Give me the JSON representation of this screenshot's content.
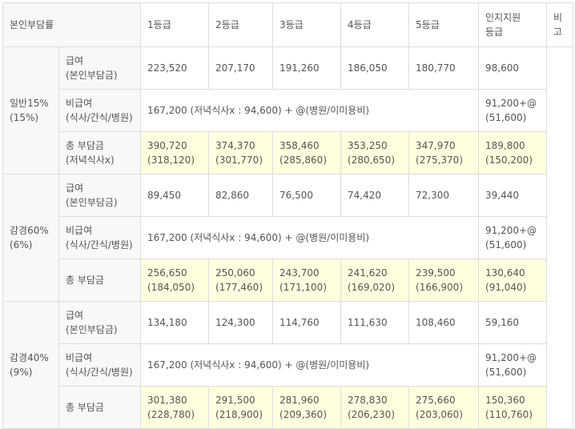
{
  "header": [
    [
      "본인부담률"
    ],
    [
      "1등급"
    ],
    [
      "2등급"
    ],
    [
      "3등급"
    ],
    [
      "4등급"
    ],
    [
      "5등급"
    ],
    [
      "인지지원",
      "등급"
    ],
    [
      "비",
      "고"
    ]
  ],
  "groups": [
    {
      "label": [
        "일반15%",
        "(15%)"
      ],
      "rows": [
        {
          "label": [
            "급여",
            "(본인부담금)"
          ],
          "values": [
            [
              "223,520"
            ],
            [
              "207,170"
            ],
            [
              "191,260"
            ],
            [
              "186,050"
            ],
            [
              "180,770"
            ],
            [
              "98,600"
            ]
          ]
        },
        {
          "label": [
            "비급여",
            "(식사/간식/병원)"
          ],
          "span": [
            "167,200 (저녁식사x : 94,600) + @(병원/이미용비)"
          ],
          "last": [
            "91,200+@",
            "(51,600)"
          ]
        },
        {
          "label": [
            "총 부담금",
            "(저녁식사x)"
          ],
          "values": [
            [
              "390,720",
              "(318,120)"
            ],
            [
              "374,370",
              "(301,770)"
            ],
            [
              "358,460",
              "(285,860)"
            ],
            [
              "353,250",
              "(280,650)"
            ],
            [
              "347,970",
              "(275,370)"
            ],
            [
              "189,800",
              "(150,200)"
            ]
          ]
        }
      ]
    },
    {
      "label": [
        "감경60%",
        "(6%)"
      ],
      "rows": [
        {
          "label": [
            "급여",
            "(본인부담금)"
          ],
          "values": [
            [
              "89,450"
            ],
            [
              "82,860"
            ],
            [
              "76,500"
            ],
            [
              "74,420"
            ],
            [
              "72,300"
            ],
            [
              "39,440"
            ]
          ]
        },
        {
          "label": [
            "비급여",
            "(식사/간식/병원)"
          ],
          "span": [
            "167,200 (저녁식사x : 94,600) + @(병원/이미용비)"
          ],
          "last": [
            "91,200+@",
            "(51,600)"
          ]
        },
        {
          "label": [
            "총 부담금"
          ],
          "values": [
            [
              "256,650",
              "(184,050)"
            ],
            [
              "250,060",
              "(177,460)"
            ],
            [
              "243,700",
              "(171,100)"
            ],
            [
              "241,620",
              "(169,020)"
            ],
            [
              "239,500",
              "(166,900)"
            ],
            [
              "130,640",
              "(91,040)"
            ]
          ]
        }
      ]
    },
    {
      "label": [
        "감경40%",
        "(9%)"
      ],
      "rows": [
        {
          "label": [
            "급여",
            "(본인부담금)"
          ],
          "values": [
            [
              "134,180"
            ],
            [
              "124,300"
            ],
            [
              "114,760"
            ],
            [
              "111,630"
            ],
            [
              "108,460"
            ],
            [
              "59,160"
            ]
          ]
        },
        {
          "label": [
            "비급여",
            "(식사/간식/병원)"
          ],
          "span": [
            "167,200 (저녁식사x : 94,600) + @(병원/이미용비)"
          ],
          "last": [
            "91,200+@",
            "(51,600)"
          ]
        },
        {
          "label": [
            "총 부담금"
          ],
          "values": [
            [
              "301,380",
              "(228,780)"
            ],
            [
              "291,500",
              "(218,900)"
            ],
            [
              "281,960",
              "(209,360)"
            ],
            [
              "278,830",
              "(206,230)"
            ],
            [
              "275,660",
              "(203,060)"
            ],
            [
              "150,360",
              "(110,760)"
            ]
          ]
        }
      ]
    }
  ]
}
